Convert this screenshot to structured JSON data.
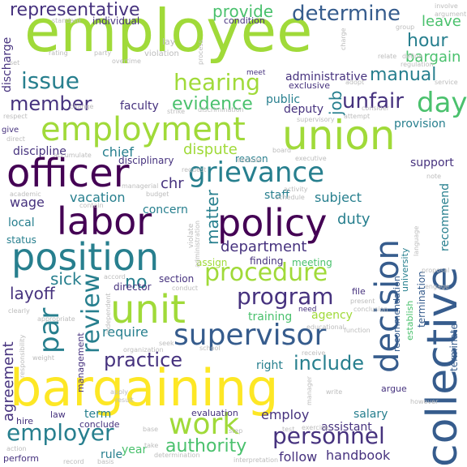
{
  "palette": {
    "purple": "#440154",
    "indigo": "#46327e",
    "blue": "#365c8d",
    "teal": "#277f8e",
    "green": "#1fa187",
    "lightgreen": "#4ac16d",
    "lime": "#a0da39",
    "yellow": "#fde725",
    "lightgray": "#bcbcbc"
  },
  "words": [
    {
      "text": "employee",
      "color": "lime"
    },
    {
      "text": "bargaining",
      "color": "yellow"
    },
    {
      "text": "union",
      "color": "lime"
    },
    {
      "text": "employment",
      "color": "lime"
    },
    {
      "text": "collective",
      "color": "blue"
    },
    {
      "text": "officer",
      "color": "purple"
    },
    {
      "text": "policy",
      "color": "purple"
    },
    {
      "text": "labor",
      "color": "purple"
    },
    {
      "text": "grievance",
      "color": "teal"
    },
    {
      "text": "position",
      "color": "teal"
    },
    {
      "text": "unit",
      "color": "lime"
    },
    {
      "text": "decision",
      "color": "blue"
    },
    {
      "text": "work",
      "color": "lime"
    },
    {
      "text": "supervisor",
      "color": "blue"
    },
    {
      "text": "procedure",
      "color": "lime"
    },
    {
      "text": "program",
      "color": "indigo"
    },
    {
      "text": "personnel",
      "color": "indigo"
    },
    {
      "text": "employer",
      "color": "teal"
    },
    {
      "text": "determine",
      "color": "blue"
    },
    {
      "text": "representative",
      "color": "indigo"
    },
    {
      "text": "review",
      "color": "teal"
    },
    {
      "text": "day",
      "color": "lightgreen"
    },
    {
      "text": "unfair",
      "color": "indigo"
    },
    {
      "text": "issue",
      "color": "teal"
    },
    {
      "text": "member",
      "color": "indigo"
    },
    {
      "text": "hearing",
      "color": "lime"
    },
    {
      "text": "evidence",
      "color": "lightgreen"
    },
    {
      "text": "practice",
      "color": "indigo"
    },
    {
      "text": "include",
      "color": "teal"
    },
    {
      "text": "authority",
      "color": "lightgreen"
    },
    {
      "text": "par",
      "color": "teal"
    },
    {
      "text": "provide",
      "color": "lightgreen"
    },
    {
      "text": "dispute",
      "color": "lime"
    },
    {
      "text": "manual",
      "color": "teal"
    },
    {
      "text": "hour",
      "color": "teal"
    },
    {
      "text": "bargain",
      "color": "lightgreen"
    },
    {
      "text": "leave",
      "color": "lightgreen"
    },
    {
      "text": "job",
      "color": "teal"
    },
    {
      "text": "department",
      "color": "indigo"
    },
    {
      "text": "layoff",
      "color": "indigo"
    },
    {
      "text": "sick",
      "color": "teal"
    },
    {
      "text": "no",
      "color": "teal"
    },
    {
      "text": "matter",
      "color": "teal"
    },
    {
      "text": "chief",
      "color": "teal"
    },
    {
      "text": "chr",
      "color": "indigo"
    },
    {
      "text": "duty",
      "color": "teal"
    },
    {
      "text": "subject",
      "color": "teal"
    },
    {
      "text": "staff",
      "color": "teal"
    },
    {
      "text": "wage",
      "color": "indigo"
    },
    {
      "text": "vacation",
      "color": "teal"
    },
    {
      "text": "concern",
      "color": "teal"
    },
    {
      "text": "local",
      "color": "teal"
    },
    {
      "text": "status",
      "color": "teal"
    },
    {
      "text": "agreement",
      "color": "indigo"
    },
    {
      "text": "require",
      "color": "teal"
    },
    {
      "text": "training",
      "color": "lightgreen"
    },
    {
      "text": "agency",
      "color": "lime"
    },
    {
      "text": "employ",
      "color": "indigo"
    },
    {
      "text": "follow",
      "color": "indigo"
    },
    {
      "text": "handbook",
      "color": "indigo"
    },
    {
      "text": "rule",
      "color": "teal"
    },
    {
      "text": "salary",
      "color": "teal"
    },
    {
      "text": "assistant",
      "color": "indigo"
    },
    {
      "text": "term",
      "color": "teal"
    },
    {
      "text": "year",
      "color": "lightgreen"
    },
    {
      "text": "right",
      "color": "teal"
    },
    {
      "text": "administrative",
      "color": "indigo"
    },
    {
      "text": "faculty",
      "color": "indigo"
    },
    {
      "text": "discipline",
      "color": "indigo"
    },
    {
      "text": "discharge",
      "color": "indigo"
    },
    {
      "text": "public",
      "color": "teal"
    },
    {
      "text": "deputy",
      "color": "indigo"
    },
    {
      "text": "provision",
      "color": "teal"
    },
    {
      "text": "support",
      "color": "indigo"
    },
    {
      "text": "recommend",
      "color": "teal"
    },
    {
      "text": "director",
      "color": "indigo"
    },
    {
      "text": "section",
      "color": "indigo"
    },
    {
      "text": "finding",
      "color": "indigo"
    },
    {
      "text": "meeting",
      "color": "lightgreen"
    },
    {
      "text": "assign",
      "color": "lime"
    },
    {
      "text": "disciplinary",
      "color": "indigo"
    },
    {
      "text": "reason",
      "color": "teal"
    },
    {
      "text": "individual",
      "color": "indigo"
    },
    {
      "text": "condition",
      "color": "indigo"
    },
    {
      "text": "exclusive",
      "color": "indigo"
    },
    {
      "text": "terminate",
      "color": "blue"
    },
    {
      "text": "termination",
      "color": "blue"
    },
    {
      "text": "recommendation",
      "color": "blue"
    },
    {
      "text": "university",
      "color": "teal"
    },
    {
      "text": "establish",
      "color": "lightgreen"
    },
    {
      "text": "management",
      "color": "indigo"
    },
    {
      "text": "evaluation",
      "color": "indigo"
    },
    {
      "text": "perform",
      "color": "indigo"
    },
    {
      "text": "hire",
      "color": "indigo"
    },
    {
      "text": "law",
      "color": "indigo"
    },
    {
      "text": "conclude",
      "color": "indigo"
    },
    {
      "text": "argue",
      "color": "indigo"
    },
    {
      "text": "file",
      "color": "indigo"
    },
    {
      "text": "need",
      "color": "indigo"
    },
    {
      "text": "meet",
      "color": "indigo"
    },
    {
      "text": "give",
      "color": "indigo"
    },
    {
      "text": "standard",
      "color": "lightgray"
    },
    {
      "text": "violation",
      "color": "lightgray"
    },
    {
      "text": "regulation",
      "color": "lightgray"
    },
    {
      "text": "service",
      "color": "lightgray"
    },
    {
      "text": "supervisory",
      "color": "lightgray"
    },
    {
      "text": "board",
      "color": "lightgray"
    },
    {
      "text": "executive",
      "color": "lightgray"
    },
    {
      "text": "exclude",
      "color": "lightgray"
    },
    {
      "text": "activity",
      "color": "lightgray"
    },
    {
      "text": "schedule",
      "color": "lightgray"
    },
    {
      "text": "budget",
      "color": "lightgray"
    },
    {
      "text": "contain",
      "color": "lightgray"
    },
    {
      "text": "academic",
      "color": "lightgray"
    },
    {
      "text": "managerial",
      "color": "lightgray"
    },
    {
      "text": "consider",
      "color": "lightgray"
    },
    {
      "text": "accumulate",
      "color": "lightgray"
    },
    {
      "text": "independent",
      "color": "lightgray"
    },
    {
      "text": "appropriate",
      "color": "lightgray"
    },
    {
      "text": "educational",
      "color": "lightgray"
    },
    {
      "text": "school",
      "color": "lightgray"
    },
    {
      "text": "organization",
      "color": "lightgray"
    },
    {
      "text": "determination",
      "color": "lightgray"
    },
    {
      "text": "interpretation",
      "color": "lightgray"
    },
    {
      "text": "exercise",
      "color": "lightgray"
    },
    {
      "text": "function",
      "color": "lightgray"
    },
    {
      "text": "however",
      "color": "lightgray"
    },
    {
      "text": "present",
      "color": "lightgray"
    },
    {
      "text": "conclusion",
      "color": "lightgray"
    },
    {
      "text": "proposal",
      "color": "lightgray"
    },
    {
      "text": "engage",
      "color": "lightgray"
    },
    {
      "text": "language",
      "color": "lightgray"
    },
    {
      "text": "receive",
      "color": "lightgray"
    },
    {
      "text": "manager",
      "color": "lightgray"
    },
    {
      "text": "result",
      "color": "lightgray"
    },
    {
      "text": "accord",
      "color": "lightgray"
    },
    {
      "text": "basis",
      "color": "lightgray"
    },
    {
      "text": "action",
      "color": "lightgray"
    },
    {
      "text": "seek",
      "color": "lightgray"
    },
    {
      "text": "test",
      "color": "lightgray"
    },
    {
      "text": "step",
      "color": "lightgray"
    },
    {
      "text": "base",
      "color": "lightgray"
    },
    {
      "text": "write",
      "color": "lightgray"
    },
    {
      "text": "note",
      "color": "lightgray"
    },
    {
      "text": "group",
      "color": "lightgray"
    },
    {
      "text": "involve",
      "color": "lightgray"
    },
    {
      "text": "argument",
      "color": "lightgray"
    },
    {
      "text": "change",
      "color": "lightgray"
    },
    {
      "text": "relate",
      "color": "lightgray"
    },
    {
      "text": "define",
      "color": "lightgray"
    },
    {
      "text": "party",
      "color": "lightgray"
    },
    {
      "text": "overtime",
      "color": "lightgray"
    },
    {
      "text": "rating",
      "color": "lightgray"
    },
    {
      "text": "adopt",
      "color": "lightgray"
    },
    {
      "text": "attempt",
      "color": "lightgray"
    },
    {
      "text": "strike",
      "color": "lightgray"
    },
    {
      "text": "respect",
      "color": "lightgray"
    },
    {
      "text": "direct",
      "color": "lightgray"
    },
    {
      "text": "request",
      "color": "lightgray"
    },
    {
      "text": "conduct",
      "color": "lightgray"
    },
    {
      "text": "clearly",
      "color": "lightgray"
    },
    {
      "text": "weight",
      "color": "lightgray"
    },
    {
      "text": "apply",
      "color": "lightgray"
    },
    {
      "text": "record",
      "color": "lightgray"
    },
    {
      "text": "take",
      "color": "lightgray"
    },
    {
      "text": "lay",
      "color": "lightgray"
    },
    {
      "text": "set",
      "color": "lightgray"
    },
    {
      "text": "process",
      "color": "lightgray"
    },
    {
      "text": "charge",
      "color": "lightgray"
    },
    {
      "text": "discrimination",
      "color": "lightgray"
    },
    {
      "text": "administration",
      "color": "lightgray"
    },
    {
      "text": "responsibility",
      "color": "lightgray"
    },
    {
      "text": "violate",
      "color": "lightgray"
    }
  ]
}
